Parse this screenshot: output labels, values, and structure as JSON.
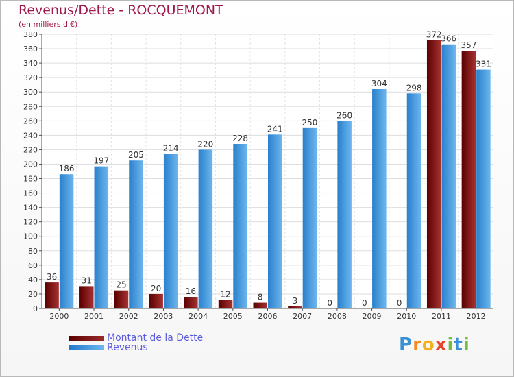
{
  "header": {
    "title": "Revenus/Dette - ROCQUEMONT",
    "subtitle": "(en milliers d'€)"
  },
  "legend": {
    "debt_label": "Montant de la Dette",
    "revenue_label": "Revenus"
  },
  "logo": {
    "text": "Proxiti",
    "letters": [
      "P",
      "r",
      "o",
      "x",
      "i",
      "t",
      "i"
    ]
  },
  "colors": {
    "debt": "#7a1010",
    "revenue": "#4aa0e6",
    "title": "#a0174c",
    "legend_text": "#5b5ce0"
  },
  "chart_data": {
    "type": "bar",
    "title": "Revenus/Dette - ROCQUEMONT",
    "ylabel": "(en milliers d'€)",
    "xlabel": "",
    "categories": [
      "2000",
      "2001",
      "2002",
      "2003",
      "2004",
      "2005",
      "2006",
      "2007",
      "2008",
      "2009",
      "2010",
      "2011",
      "2012"
    ],
    "series": [
      {
        "name": "Montant de la Dette",
        "values": [
          36,
          31,
          25,
          20,
          16,
          12,
          8,
          3,
          0,
          0,
          0,
          372,
          357
        ]
      },
      {
        "name": "Revenus",
        "values": [
          186,
          197,
          205,
          214,
          220,
          228,
          241,
          250,
          260,
          304,
          298,
          366,
          331
        ]
      }
    ],
    "ylim": [
      0,
      380
    ],
    "yticks": [
      0,
      20,
      40,
      60,
      80,
      100,
      120,
      140,
      160,
      180,
      200,
      220,
      240,
      260,
      280,
      300,
      320,
      340,
      360,
      380
    ],
    "grid": true,
    "legend_position": "bottom-left"
  }
}
